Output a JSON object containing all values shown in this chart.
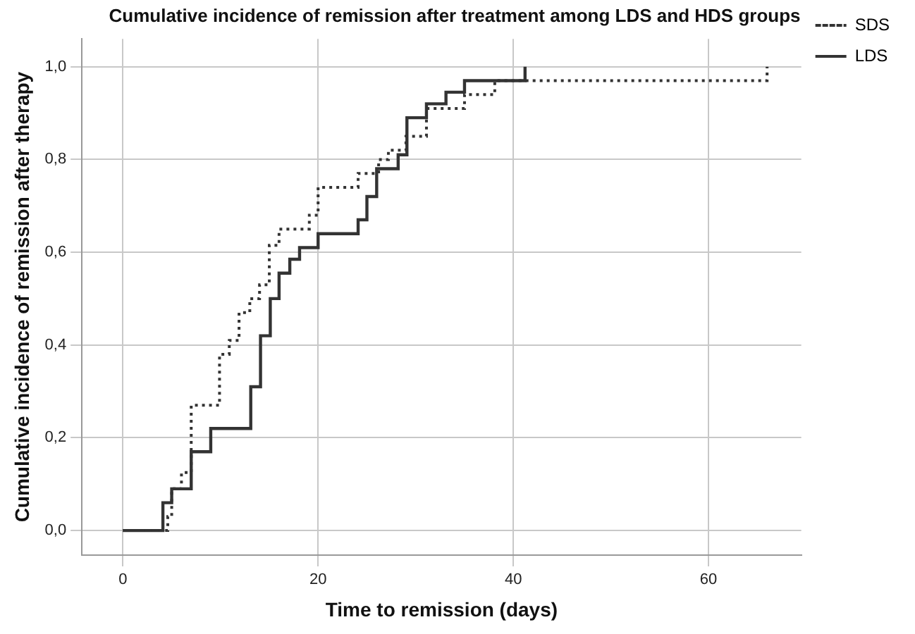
{
  "chart_data": {
    "type": "step",
    "title": "Cumulative incidence of remission after treatment among LDS and HDS groups",
    "xlabel": "Time to remission (days)",
    "ylabel": "Cumulative incidence of remission after therapy",
    "xlim": [
      -4.2,
      69.5
    ],
    "xticks": [
      0,
      20,
      40,
      60
    ],
    "ylim": [
      -0.053,
      1.06
    ],
    "yticks": [
      {
        "value": 0,
        "label": "0,0"
      },
      {
        "value": 0.2,
        "label": "0,2"
      },
      {
        "value": 0.4,
        "label": "0,4"
      },
      {
        "value": 0.6,
        "label": "0,6"
      },
      {
        "value": 0.8,
        "label": "0,8"
      },
      {
        "value": 1,
        "label": "1,0"
      }
    ],
    "grid": true,
    "legend": "top right",
    "marker": "none",
    "series": [
      {
        "name": "SDS",
        "color": "#333333",
        "line_style": "dotted",
        "x": [
          0,
          4.6,
          5,
          6,
          7,
          9.9,
          10.9,
          11.9,
          13,
          14,
          15,
          16,
          19.1,
          20,
          24.1,
          26.2,
          27.2,
          29,
          31.1,
          35,
          38.1,
          66
        ],
        "values": [
          0,
          0.03,
          0.09,
          0.125,
          0.27,
          0.38,
          0.41,
          0.47,
          0.5,
          0.53,
          0.615,
          0.65,
          0.68,
          0.74,
          0.77,
          0.8,
          0.82,
          0.85,
          0.91,
          0.94,
          0.97,
          1
        ]
      },
      {
        "name": "LDS",
        "color": "#333333",
        "line_style": "solid",
        "x": [
          0,
          4.1,
          5,
          7,
          9,
          13.1,
          14.1,
          15.1,
          16,
          17.1,
          18.1,
          20,
          24.1,
          25,
          26,
          28.2,
          29.1,
          31.1,
          33.1,
          35,
          41.2
        ],
        "values": [
          0,
          0.06,
          0.09,
          0.17,
          0.22,
          0.31,
          0.42,
          0.5,
          0.555,
          0.585,
          0.61,
          0.64,
          0.67,
          0.72,
          0.78,
          0.81,
          0.89,
          0.92,
          0.945,
          0.97,
          1
        ]
      }
    ]
  }
}
